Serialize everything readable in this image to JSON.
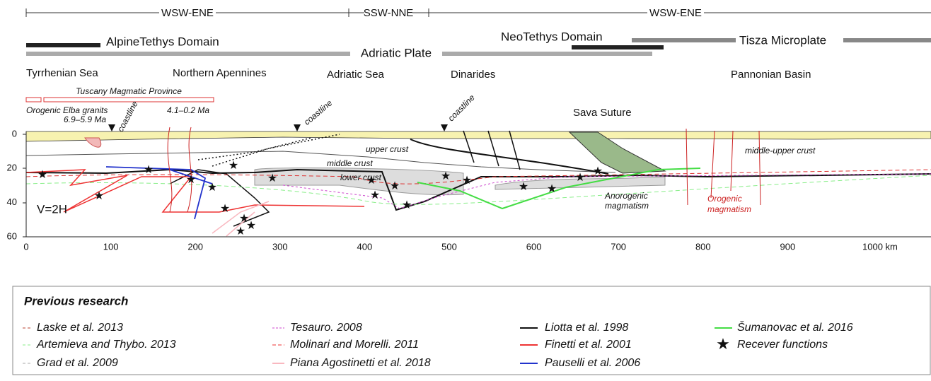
{
  "header": {
    "directions": [
      "WSW-ENE",
      "SSW-NNE",
      "WSW-ENE"
    ],
    "domains": [
      "AlpineTethys Domain",
      "Adriatic Plate",
      "NeoTethys Domain",
      "Tisza Microplate"
    ],
    "regions": [
      "Tyrrhenian Sea",
      "Northern Apennines",
      "Adriatic Sea",
      "Dinarides",
      "Pannonian Basin"
    ]
  },
  "annotations": {
    "tuscany": "Tuscany Magmatic Province",
    "elba": "Orogenic Elba granits",
    "elba_age": "6.9–5.9 Ma",
    "tuscany_age": "4.1–0.2 Ma",
    "coastline": [
      "coastline",
      "coastline",
      "coastline"
    ],
    "sava": "Sava Suture",
    "upper_crust": "upper crust",
    "middle_crust": "middle crust",
    "lower_crust": "lower crust",
    "middle_upper_crust": "middle-upper crust",
    "anorogenic": [
      "Anorogenic",
      "magmatism"
    ],
    "orogenic": [
      "Orogenic",
      "magmatism"
    ],
    "scale": "V=2H"
  },
  "axes": {
    "depth_ticks": [
      0,
      20,
      40,
      60
    ],
    "distance_ticks": [
      0,
      100,
      200,
      300,
      400,
      500,
      600,
      700,
      800,
      900,
      "1000 km"
    ]
  },
  "legend": {
    "title": "Previous research",
    "entries": [
      "Laske et al. 2013",
      "Artemieva and Thybo. 2013",
      "Grad et al. 2009",
      "Tesauro. 2008",
      "Molinari and Morelli. 2011",
      "Piana Agostinetti et al. 2018",
      "Liotta et al. 1998",
      "Finetti et al. 2001",
      "Pauselli et al. 2006",
      "Šumanovac et al. 2016",
      "Recever functions"
    ]
  }
}
